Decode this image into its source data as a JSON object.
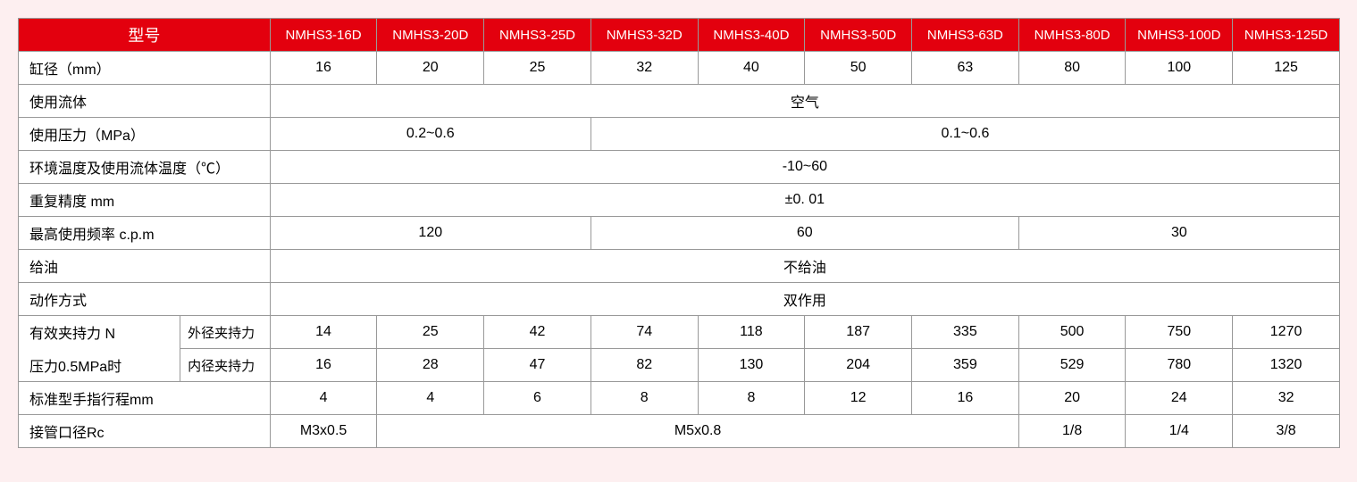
{
  "header": {
    "title": "型号",
    "models": [
      "NMHS3-16D",
      "NMHS3-20D",
      "NMHS3-25D",
      "NMHS3-32D",
      "NMHS3-40D",
      "NMHS3-50D",
      "NMHS3-63D",
      "NMHS3-80D",
      "NMHS3-100D",
      "NMHS3-125D"
    ]
  },
  "rows": {
    "bore": {
      "label": "缸径（mm）",
      "values": [
        "16",
        "20",
        "25",
        "32",
        "40",
        "50",
        "63",
        "80",
        "100",
        "125"
      ]
    },
    "fluid": {
      "label": "使用流体",
      "value": "空气"
    },
    "pressure": {
      "label": "使用压力（MPa）",
      "group1": "0.2~0.6",
      "group2": "0.1~0.6"
    },
    "temp": {
      "label": "环境温度及使用流体温度（℃）",
      "value": "-10~60"
    },
    "repeat": {
      "label": "重复精度  mm",
      "value": "±0. 01"
    },
    "freq": {
      "label": "最高使用频率  c.p.m",
      "group1": "120",
      "group2": "60",
      "group3": "30"
    },
    "oil": {
      "label": "给油",
      "value": "不给油"
    },
    "action": {
      "label": "动作方式",
      "value": "双作用"
    },
    "grip": {
      "label1": "有效夹持力 N",
      "label2": "压力0.5MPa时",
      "outer_label": "外径夹持力",
      "inner_label": "内径夹持力",
      "outer": [
        "14",
        "25",
        "42",
        "74",
        "118",
        "187",
        "335",
        "500",
        "750",
        "1270"
      ],
      "inner": [
        "16",
        "28",
        "47",
        "82",
        "130",
        "204",
        "359",
        "529",
        "780",
        "1320"
      ]
    },
    "stroke": {
      "label": "标准型手指行程mm",
      "values": [
        "4",
        "4",
        "6",
        "8",
        "8",
        "12",
        "16",
        "20",
        "24",
        "32"
      ]
    },
    "port": {
      "label": "接管口径Rc",
      "v1": "M3x0.5",
      "v2": "M5x0.8",
      "v3": "1/8",
      "v4": "1/4",
      "v5": "3/8"
    }
  },
  "colors": {
    "header_bg": "#e3000e",
    "header_fg": "#ffffff",
    "border": "#999999",
    "page_bg": "#fdeff0",
    "cell_bg": "#ffffff"
  }
}
